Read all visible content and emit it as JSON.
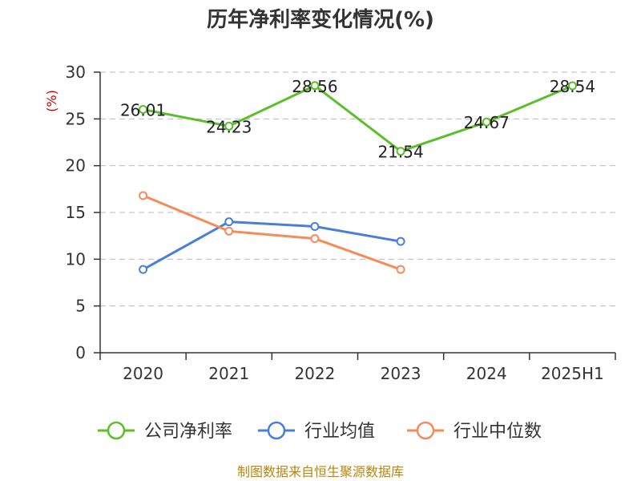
{
  "chart_data": {
    "type": "line",
    "title": "历年净利率变化情况(%)",
    "unit_label": "(%)",
    "categories": [
      "2020",
      "2021",
      "2022",
      "2023",
      "2024",
      "2025H1"
    ],
    "ylim": [
      0,
      30
    ],
    "yticks": [
      0,
      5,
      10,
      15,
      20,
      25,
      30
    ],
    "grid": true,
    "legend_position": "bottom",
    "series": [
      {
        "name": "公司净利率",
        "color": "#5cbf2a",
        "values": [
          26.01,
          24.23,
          28.56,
          21.54,
          24.67,
          28.54
        ],
        "labels": [
          "26.01",
          "24.23",
          "28.56",
          "21.54",
          "24.67",
          "28.54"
        ]
      },
      {
        "name": "行业均值",
        "color": "#4a7fd6",
        "values": [
          8.9,
          14.0,
          13.5,
          11.9,
          null,
          null
        ]
      },
      {
        "name": "行业中位数",
        "color": "#f58b5a",
        "values": [
          16.8,
          13.0,
          12.2,
          8.9,
          null,
          null
        ]
      }
    ]
  },
  "source_text": "制图数据来自恒生聚源数据库"
}
